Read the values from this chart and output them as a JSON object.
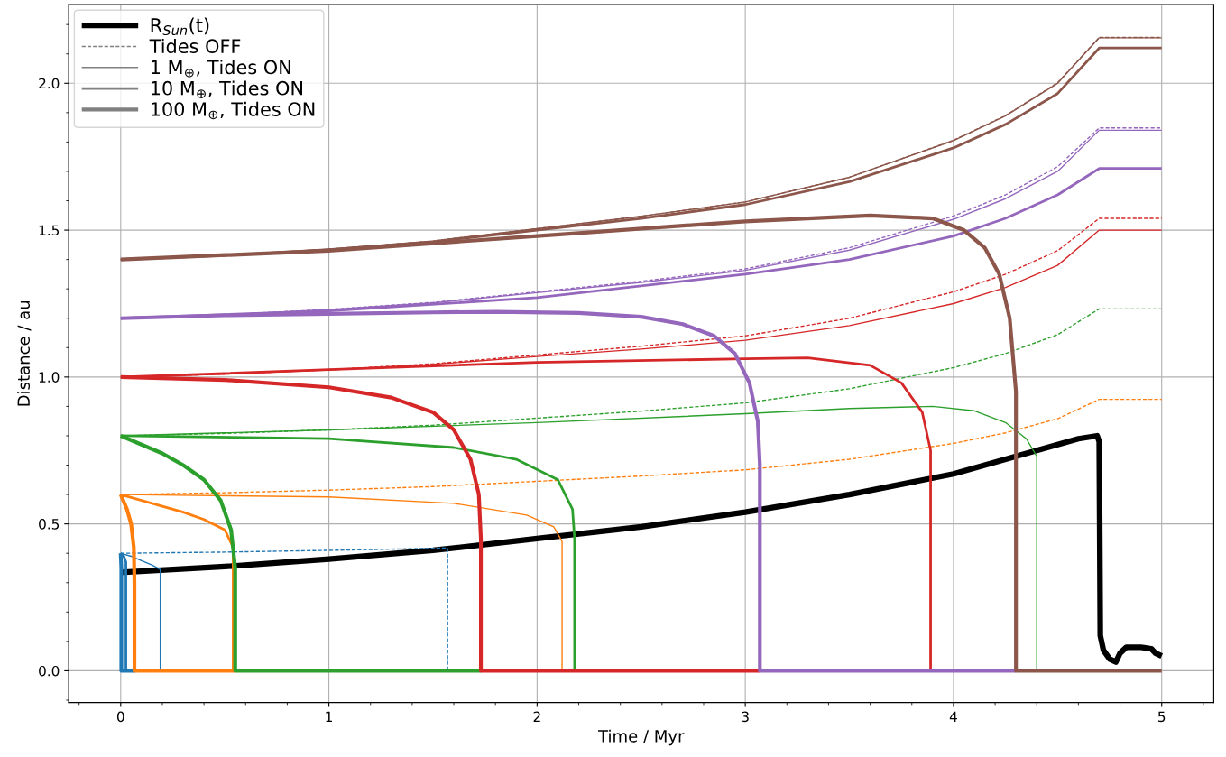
{
  "chart_data": {
    "type": "line",
    "xlabel": "Time / Myr",
    "ylabel": "Distance / au",
    "xlim": [
      -0.25,
      5.25
    ],
    "ylim": [
      -0.108,
      2.268
    ],
    "xticks": [
      0,
      1,
      2,
      3,
      4,
      5,
      {
        "value": -0.2,
        "label": null
      },
      {
        "value": 0.2,
        "label": null
      },
      {
        "value": 0.4,
        "label": null
      },
      {
        "value": 0.6,
        "label": null
      },
      {
        "value": 0.8,
        "label": null
      },
      {
        "value": 1.2,
        "label": null
      },
      {
        "value": 1.4,
        "label": null
      },
      {
        "value": 1.6,
        "label": null
      },
      {
        "value": 1.8,
        "label": null
      },
      {
        "value": 2.2,
        "label": null
      },
      {
        "value": 2.4,
        "label": null
      },
      {
        "value": 2.6,
        "label": null
      },
      {
        "value": 2.8,
        "label": null
      },
      {
        "value": 3.2,
        "label": null
      },
      {
        "value": 3.4,
        "label": null
      },
      {
        "value": 3.6,
        "label": null
      },
      {
        "value": 3.8,
        "label": null
      },
      {
        "value": 4.2,
        "label": null
      },
      {
        "value": 4.4,
        "label": null
      },
      {
        "value": 4.6,
        "label": null
      },
      {
        "value": 4.8,
        "label": null
      },
      {
        "value": 5.2,
        "label": null
      }
    ],
    "yticks": [
      {
        "value": 0,
        "label": "0.0"
      },
      0.5,
      {
        "value": 1,
        "label": "1.0"
      },
      1.5,
      {
        "value": 2,
        "label": "2.0"
      },
      {
        "value": -0.1,
        "label": null
      },
      {
        "value": 0.1,
        "label": null
      },
      {
        "value": 0.2,
        "label": null
      },
      {
        "value": 0.3,
        "label": null
      },
      {
        "value": 0.4,
        "label": null
      },
      {
        "value": 0.6,
        "label": null
      },
      {
        "value": 0.7,
        "label": null
      },
      {
        "value": 0.8,
        "label": null
      },
      {
        "value": 0.9,
        "label": null
      },
      {
        "value": 1.1,
        "label": null
      },
      {
        "value": 1.2,
        "label": null
      },
      {
        "value": 1.3,
        "label": null
      },
      {
        "value": 1.4,
        "label": null
      },
      {
        "value": 1.6,
        "label": null
      },
      {
        "value": 1.7,
        "label": null
      },
      {
        "value": 1.8,
        "label": null
      },
      {
        "value": 1.9,
        "label": null
      },
      {
        "value": 2.1,
        "label": null
      },
      {
        "value": 2.2,
        "label": null
      }
    ],
    "grid": true,
    "legend": "top left",
    "series": [
      {
        "name": "R$_{Sun}$(t)",
        "color": "#000000",
        "x": [
          0,
          0.5,
          1,
          1.5,
          2,
          2.5,
          3,
          3.5,
          4,
          4.4,
          4.6,
          4.69,
          4.7,
          4.705,
          4.72,
          4.75,
          4.78,
          4.8,
          4.83,
          4.9,
          4.95,
          4.97,
          5
        ],
        "values": [
          0.335,
          0.355,
          0.38,
          0.41,
          0.45,
          0.49,
          0.54,
          0.6,
          0.67,
          0.75,
          0.79,
          0.8,
          0.78,
          0.12,
          0.07,
          0.04,
          0.03,
          0.06,
          0.08,
          0.08,
          0.075,
          0.06,
          0.05
        ]
      },
      {
        "name": "Tides OFF",
        "color": "#808080",
        "line_style": "dashed"
      },
      {
        "name": "1 M$_{⊕}$, Tides ON",
        "color": "#808080"
      },
      {
        "name": "10 M$_{⊕}$, Tides ON",
        "color": "#808080"
      },
      {
        "name": "100 M$_{⊕}$, Tides ON",
        "color": "#808080"
      },
      {
        "color": "#1f77b4",
        "line_style": "dashed",
        "x": [
          0,
          0.5,
          1,
          1.57,
          1.57
        ],
        "values": [
          0.4,
          0.404,
          0.41,
          0.418,
          0
        ]
      },
      {
        "color": "#ff7f0e",
        "line_style": "dashed",
        "x": [
          0,
          0.5,
          1,
          1.5,
          2,
          2.5,
          3,
          3.5,
          4,
          4.25,
          4.5,
          4.7,
          5
        ],
        "values": [
          0.6,
          0.606,
          0.615,
          0.627,
          0.645,
          0.663,
          0.684,
          0.72,
          0.774,
          0.81,
          0.858,
          0.924,
          0.924
        ]
      },
      {
        "color": "#2ca02c",
        "line_style": "dashed",
        "x": [
          0,
          0.5,
          1,
          1.5,
          2,
          2.5,
          3,
          3.5,
          4,
          4.25,
          4.5,
          4.7,
          5
        ],
        "values": [
          0.8,
          0.808,
          0.82,
          0.836,
          0.86,
          0.884,
          0.912,
          0.96,
          1.032,
          1.08,
          1.144,
          1.232,
          1.232
        ]
      },
      {
        "color": "#d62728",
        "line_style": "dashed",
        "x": [
          0,
          0.5,
          1,
          1.5,
          2,
          2.5,
          3,
          3.5,
          4,
          4.25,
          4.5,
          4.7,
          5
        ],
        "values": [
          1,
          1.01,
          1.025,
          1.045,
          1.075,
          1.105,
          1.14,
          1.2,
          1.29,
          1.35,
          1.43,
          1.54,
          1.54
        ]
      },
      {
        "color": "#9467bd",
        "line_style": "dashed",
        "x": [
          0,
          0.5,
          1,
          1.5,
          2,
          2.5,
          3,
          3.5,
          4,
          4.25,
          4.5,
          4.7,
          5
        ],
        "values": [
          1.2,
          1.212,
          1.23,
          1.254,
          1.29,
          1.326,
          1.368,
          1.44,
          1.548,
          1.62,
          1.716,
          1.848,
          1.848
        ]
      },
      {
        "color": "#8c564b",
        "line_style": "dashed",
        "x": [
          0,
          0.5,
          1,
          1.5,
          2,
          2.5,
          3,
          3.5,
          4,
          4.25,
          4.5,
          4.7,
          5
        ],
        "values": [
          1.4,
          1.414,
          1.435,
          1.463,
          1.505,
          1.547,
          1.596,
          1.68,
          1.806,
          1.89,
          2.002,
          2.156,
          2.156
        ]
      },
      {
        "color": "#1f77b4",
        "x": [
          0,
          0.05,
          0.1,
          0.15,
          0.19,
          0.19
        ],
        "values": [
          0.4,
          0.39,
          0.375,
          0.36,
          0.345,
          0
        ]
      },
      {
        "color": "#ff7f0e",
        "x": [
          0,
          1,
          1.6,
          1.95,
          2.08,
          2.12,
          2.12
        ],
        "values": [
          0.6,
          0.592,
          0.57,
          0.53,
          0.49,
          0.44,
          0
        ]
      },
      {
        "color": "#2ca02c",
        "x": [
          0,
          1,
          2,
          3,
          3.5,
          3.9,
          4.1,
          4.25,
          4.35,
          4.4,
          4.4
        ],
        "values": [
          0.8,
          0.82,
          0.845,
          0.875,
          0.893,
          0.9,
          0.885,
          0.845,
          0.79,
          0.73,
          0
        ]
      },
      {
        "color": "#d62728",
        "x": [
          0,
          0.5,
          1,
          1.5,
          2,
          2.5,
          3,
          3.5,
          4,
          4.25,
          4.5,
          4.7,
          5
        ],
        "values": [
          1,
          1.01,
          1.024,
          1.043,
          1.07,
          1.095,
          1.125,
          1.175,
          1.25,
          1.305,
          1.38,
          1.5,
          1.5
        ]
      },
      {
        "color": "#9467bd",
        "x": [
          0,
          0.5,
          1,
          1.5,
          2,
          2.5,
          3,
          3.5,
          4,
          4.25,
          4.5,
          4.7,
          5
        ],
        "values": [
          1.2,
          1.212,
          1.229,
          1.252,
          1.287,
          1.322,
          1.363,
          1.432,
          1.537,
          1.607,
          1.7,
          1.84,
          1.84
        ]
      },
      {
        "color": "#8c564b",
        "x": [
          0,
          0.5,
          1,
          1.5,
          2,
          2.5,
          3,
          3.5,
          4,
          4.25,
          4.5,
          4.7,
          5
        ],
        "values": [
          1.4,
          1.414,
          1.435,
          1.463,
          1.505,
          1.547,
          1.596,
          1.68,
          1.805,
          1.889,
          2.0,
          2.155,
          2.155
        ]
      },
      {
        "color": "#1f77b4",
        "x": [
          0,
          0.015,
          0.025,
          0.025
        ],
        "values": [
          0.4,
          0.39,
          0.37,
          0
        ]
      },
      {
        "color": "#ff7f0e",
        "x": [
          0,
          0.1,
          0.2,
          0.3,
          0.4,
          0.5,
          0.54,
          0.54
        ],
        "values": [
          0.6,
          0.58,
          0.56,
          0.54,
          0.515,
          0.48,
          0.42,
          0
        ]
      },
      {
        "color": "#2ca02c",
        "x": [
          0,
          1,
          1.6,
          1.9,
          2.1,
          2.17,
          2.18,
          2.18
        ],
        "values": [
          0.8,
          0.79,
          0.76,
          0.72,
          0.65,
          0.55,
          0.45,
          0
        ]
      },
      {
        "color": "#d62728",
        "x": [
          0,
          1,
          2,
          3,
          3.3,
          3.6,
          3.75,
          3.85,
          3.89,
          3.89
        ],
        "values": [
          1,
          1.025,
          1.05,
          1.062,
          1.065,
          1.04,
          0.98,
          0.88,
          0.75,
          0
        ]
      },
      {
        "color": "#9467bd",
        "x": [
          0,
          1,
          2,
          3,
          3.5,
          4,
          4.25,
          4.5,
          4.7,
          5
        ],
        "values": [
          1.2,
          1.225,
          1.27,
          1.35,
          1.4,
          1.48,
          1.54,
          1.62,
          1.71,
          1.71
        ]
      },
      {
        "color": "#8c564b",
        "x": [
          0,
          0.5,
          1,
          1.5,
          2,
          2.5,
          3,
          3.5,
          4,
          4.25,
          4.5,
          4.7,
          5
        ],
        "values": [
          1.4,
          1.414,
          1.434,
          1.46,
          1.5,
          1.54,
          1.587,
          1.665,
          1.78,
          1.86,
          1.965,
          2.12,
          2.12
        ]
      },
      {
        "color": "#1f77b4",
        "x": [
          0,
          0.003,
          0.003,
          0.07
        ],
        "values": [
          0.4,
          0.35,
          0,
          0
        ]
      },
      {
        "color": "#ff7f0e",
        "x": [
          0,
          0.03,
          0.05,
          0.063,
          0.066,
          0.066,
          0.55
        ],
        "values": [
          0.6,
          0.55,
          0.5,
          0.42,
          0.3,
          0,
          0
        ]
      },
      {
        "color": "#2ca02c",
        "x": [
          0,
          0.1,
          0.2,
          0.3,
          0.4,
          0.48,
          0.53,
          0.55,
          0.55,
          1.73
        ],
        "values": [
          0.8,
          0.77,
          0.74,
          0.7,
          0.65,
          0.58,
          0.48,
          0.35,
          0,
          0
        ]
      },
      {
        "color": "#d62728",
        "x": [
          0,
          0.5,
          1,
          1.3,
          1.5,
          1.6,
          1.68,
          1.72,
          1.73,
          1.73,
          3.07
        ],
        "values": [
          1,
          0.99,
          0.965,
          0.93,
          0.88,
          0.82,
          0.72,
          0.6,
          0.45,
          0,
          0
        ]
      },
      {
        "color": "#9467bd",
        "x": [
          0,
          0.5,
          1,
          1.5,
          1.8,
          2.2,
          2.5,
          2.7,
          2.85,
          2.95,
          3.02,
          3.06,
          3.07,
          3.07,
          4.3
        ],
        "values": [
          1.2,
          1.21,
          1.215,
          1.22,
          1.222,
          1.218,
          1.205,
          1.18,
          1.14,
          1.08,
          0.98,
          0.85,
          0.7,
          0,
          0
        ]
      },
      {
        "color": "#8c564b",
        "x": [
          0,
          1,
          2,
          3,
          3.6,
          3.9,
          4.05,
          4.15,
          4.22,
          4.27,
          4.3,
          4.3,
          5
        ],
        "values": [
          1.4,
          1.43,
          1.48,
          1.53,
          1.55,
          1.54,
          1.5,
          1.44,
          1.35,
          1.2,
          0.95,
          0,
          0
        ]
      }
    ]
  }
}
